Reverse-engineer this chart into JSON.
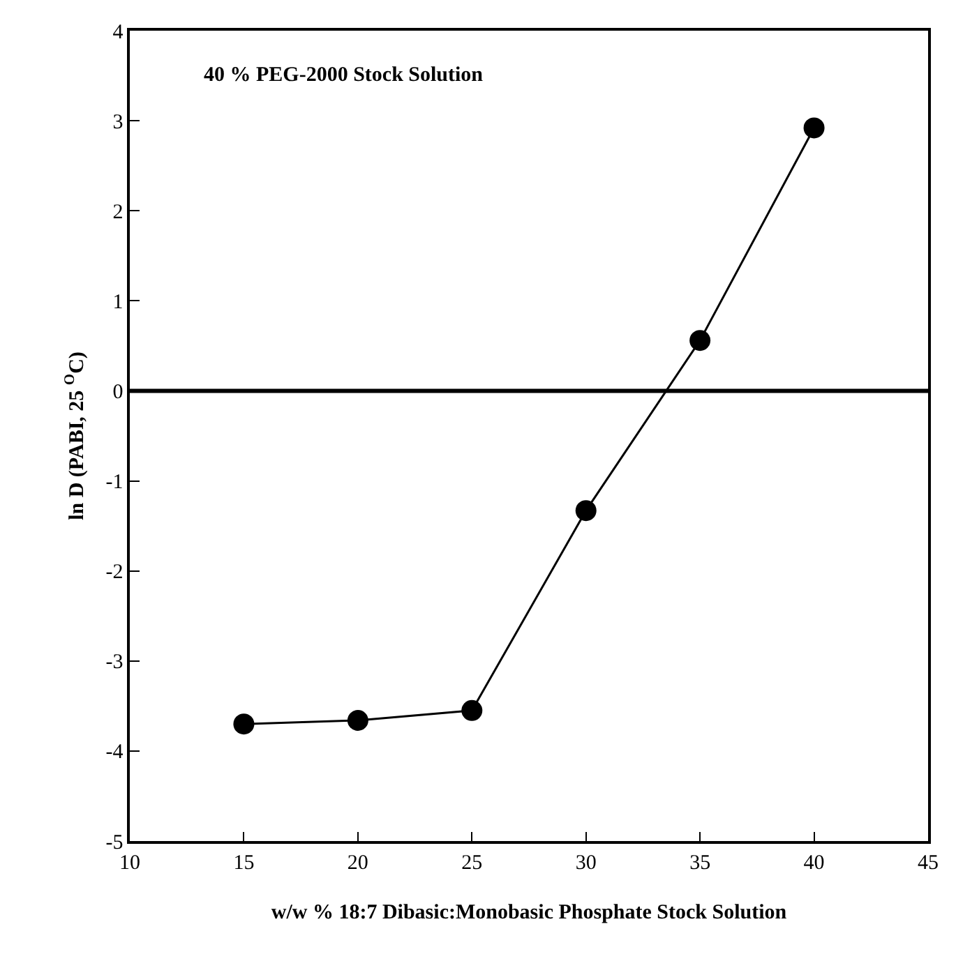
{
  "chart_data": {
    "type": "line",
    "xlabel": "w/w % 18:7 Dibasic:Monobasic Phosphate Stock Solution",
    "ylabel": "ln D (PABI, 25 $^{O}$C)",
    "annotations": [
      "40 % PEG-2000 Stock Solution"
    ],
    "x": [
      15,
      20,
      25,
      30,
      35,
      40
    ],
    "series": [
      {
        "color": "#000000",
        "values": [
          -3.7,
          -3.66,
          -3.55,
          -1.33,
          0.56,
          2.92
        ]
      }
    ],
    "xlim": [
      10,
      45
    ],
    "xticks": [
      10,
      15,
      20,
      25,
      30,
      35,
      40,
      45
    ],
    "ylim": [
      -5,
      4
    ],
    "yticks": [
      -5,
      -4,
      -3,
      -2,
      -1,
      0,
      1,
      2,
      3,
      4
    ],
    "ref_lines": [
      {
        "axis": "y",
        "value": 0,
        "color": "#000000"
      }
    ],
    "marker": "circle",
    "line_style": "solid"
  }
}
